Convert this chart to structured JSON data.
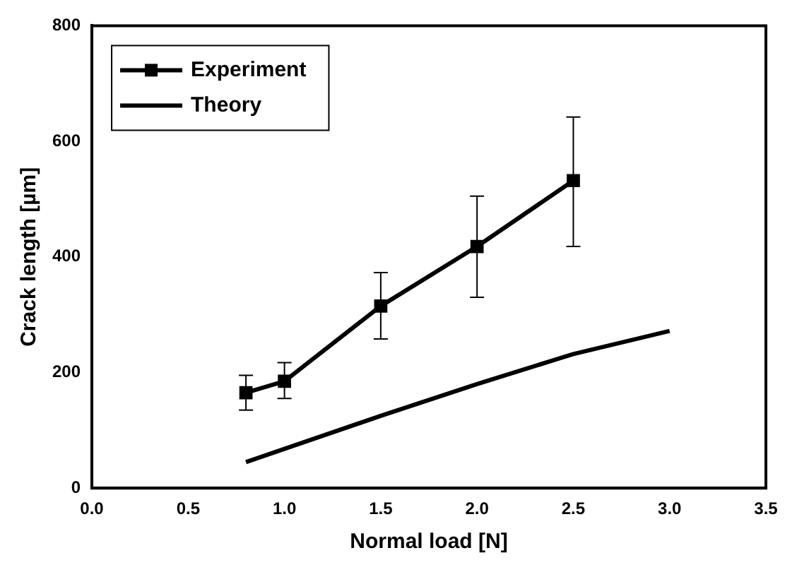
{
  "chart_data": {
    "type": "line",
    "xlabel": "Normal load [N]",
    "ylabel": "Crack length [µm]",
    "xlim": [
      0,
      3.5
    ],
    "xticks": [
      {
        "value": 0,
        "label": "0.0"
      },
      {
        "value": 0.5,
        "label": "0.5"
      },
      {
        "value": 1,
        "label": "1.0"
      },
      {
        "value": 1.5,
        "label": "1.5"
      },
      {
        "value": 2,
        "label": "2.0"
      },
      {
        "value": 2.5,
        "label": "2.5"
      },
      {
        "value": 3,
        "label": "3.0"
      },
      {
        "value": 3.5,
        "label": "3.5"
      }
    ],
    "ylim": [
      0,
      800
    ],
    "yticks": [
      0,
      200,
      400,
      600,
      800
    ],
    "grid": false,
    "legend": "top left",
    "series": [
      {
        "name": "Experiment",
        "color": "#000000",
        "marker": "square",
        "x": [
          0.8,
          1.0,
          1.5,
          2.0,
          2.5
        ],
        "values": [
          165,
          185,
          315,
          418,
          532
        ],
        "errors": [
          [
            135,
            195
          ],
          [
            155,
            217
          ],
          [
            258,
            373
          ],
          [
            330,
            505
          ],
          [
            418,
            642
          ]
        ]
      },
      {
        "name": "Theory",
        "color": "#000000",
        "marker": "none",
        "x": [
          0.8,
          1.0,
          1.5,
          2.0,
          2.5,
          3.0
        ],
        "values": [
          45,
          68,
          125,
          180,
          232,
          272
        ]
      }
    ]
  }
}
